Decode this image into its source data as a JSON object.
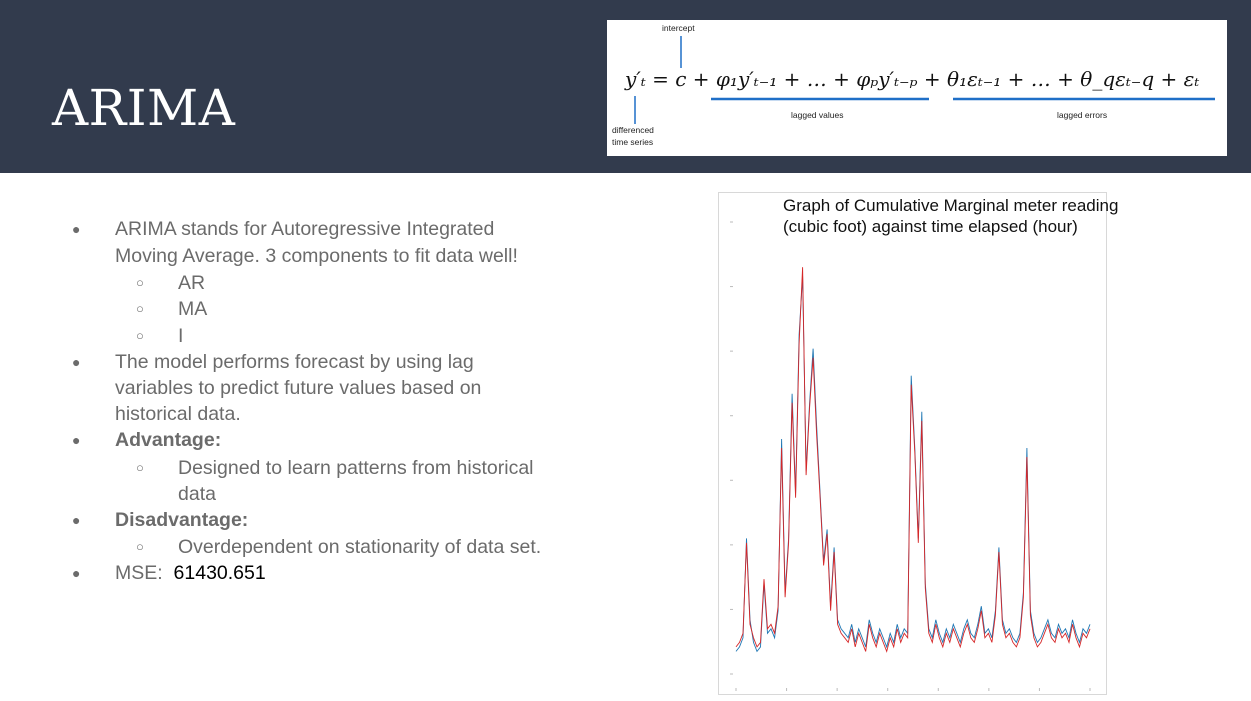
{
  "slide": {
    "title": "ARIMA",
    "colors": {
      "header_bg": "#323b4d",
      "series_actual": "#1f77b4",
      "series_predicted": "#d62728",
      "formula_underline": "#1f6fc7"
    }
  },
  "formula": {
    "label_intercept": "intercept",
    "label_differenced": "differenced",
    "label_time_series": "time series",
    "label_lagged_values": "lagged values",
    "label_lagged_errors": "lagged errors"
  },
  "bullets": {
    "b1_line1": "ARIMA stands for Autoregressive Integrated",
    "b1_line2": "Moving Average. 3 components to fit data well!",
    "sub_ar": "AR",
    "sub_ma": "MA",
    "sub_i": "I",
    "b2_line1": "The model performs forecast by using lag",
    "b2_line2": "variables to predict future values based on",
    "b2_line3": "historical data.",
    "b3": "Advantage:",
    "b3_sub_line1": "Designed to learn patterns from historical",
    "b3_sub_line2": "data",
    "b4": "Disadvantage:",
    "b4_sub": "Overdependent on stationarity of data set.",
    "b5_label": "MSE:",
    "b5_value": "61430.651"
  },
  "chart_data": {
    "type": "line",
    "title_line1": "Graph of Cumulative Marginal meter reading",
    "title_line2": "(cubic foot)  against time elapsed (hour)",
    "grid": false,
    "ylim": [
      0,
      100
    ],
    "series": [
      {
        "values": [
          5,
          6,
          8,
          30,
          12,
          7,
          5,
          6,
          20,
          9,
          10,
          8,
          14,
          52,
          18,
          30,
          62,
          40,
          75,
          88,
          45,
          60,
          72,
          55,
          40,
          25,
          32,
          15,
          28,
          12,
          10,
          9,
          8,
          11,
          7,
          10,
          8,
          6,
          12,
          9,
          7,
          10,
          8,
          6,
          9,
          7,
          11,
          8,
          10,
          9,
          66,
          50,
          30,
          58,
          20,
          10,
          8,
          12,
          9,
          7,
          10,
          8,
          11,
          9,
          7,
          10,
          12,
          9,
          8,
          11,
          15,
          9,
          10,
          8,
          14,
          28,
          12,
          9,
          10,
          8,
          7,
          9,
          18,
          50,
          14,
          9,
          7,
          8,
          10,
          12,
          9,
          8,
          11,
          9,
          10,
          8,
          12,
          9,
          7,
          10,
          9,
          11
        ]
      },
      {
        "values": [
          6,
          7,
          9,
          29,
          11,
          8,
          6,
          7,
          21,
          10,
          11,
          9,
          15,
          50,
          17,
          29,
          60,
          39,
          73,
          90,
          44,
          59,
          70,
          53,
          39,
          24,
          31,
          14,
          27,
          11,
          9,
          8,
          7,
          10,
          6,
          9,
          7,
          5,
          11,
          8,
          6,
          9,
          7,
          5,
          8,
          6,
          10,
          7,
          9,
          8,
          64,
          49,
          29,
          56,
          19,
          9,
          7,
          11,
          8,
          6,
          9,
          7,
          10,
          8,
          6,
          9,
          11,
          8,
          7,
          10,
          14,
          8,
          9,
          7,
          13,
          27,
          11,
          8,
          9,
          7,
          6,
          8,
          17,
          48,
          13,
          8,
          6,
          7,
          9,
          11,
          8,
          7,
          10,
          8,
          9,
          7,
          11,
          8,
          6,
          9,
          8,
          10
        ]
      }
    ]
  }
}
